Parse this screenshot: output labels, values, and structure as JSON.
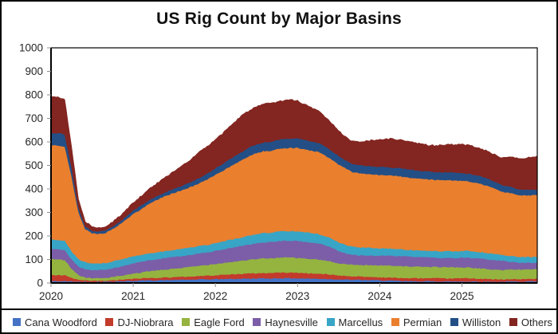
{
  "chart_data": {
    "type": "area",
    "stacked": true,
    "title": "US Rig Count by Major Basins",
    "xlabel": "",
    "ylabel": "",
    "x_start": "2020-01",
    "x_interval": "monthly",
    "x_tick_labels": [
      "2020",
      "2021",
      "2022",
      "2023",
      "2024",
      "2025"
    ],
    "y_ticks": [
      0,
      100,
      200,
      300,
      400,
      500,
      600,
      700,
      800,
      900,
      1000
    ],
    "ylim": [
      0,
      1000
    ],
    "grid": false,
    "legend_position": "bottom",
    "series": [
      {
        "name": "Cana Woodford",
        "color": "#4472C4",
        "values": [
          8,
          8,
          8,
          7,
          6,
          6,
          6,
          6,
          6,
          7,
          8,
          9,
          10,
          11,
          12,
          12,
          13,
          13,
          14,
          14,
          15,
          15,
          16,
          16,
          17,
          17,
          18,
          18,
          19,
          19,
          20,
          20,
          20,
          21,
          21,
          21,
          20,
          20,
          19,
          19,
          18,
          17,
          16,
          15,
          14,
          14,
          13,
          13,
          12,
          11,
          10,
          9,
          8,
          8,
          8,
          8,
          8,
          7,
          7,
          7,
          7,
          7,
          7,
          6,
          6,
          6,
          6,
          7,
          7,
          7,
          8,
          8
        ]
      },
      {
        "name": "DJ-Niobrara",
        "color": "#C23B2B",
        "values": [
          26,
          25,
          25,
          15,
          8,
          5,
          4,
          4,
          4,
          5,
          6,
          7,
          8,
          9,
          10,
          10,
          11,
          11,
          12,
          12,
          13,
          14,
          15,
          16,
          17,
          18,
          19,
          20,
          21,
          22,
          22,
          23,
          23,
          24,
          24,
          24,
          24,
          23,
          22,
          21,
          20,
          19,
          17,
          16,
          15,
          14,
          14,
          13,
          13,
          13,
          13,
          13,
          13,
          13,
          13,
          13,
          13,
          13,
          13,
          13,
          14,
          14,
          13,
          12,
          11,
          10,
          9,
          10,
          10,
          10,
          10,
          10
        ]
      },
      {
        "name": "Eagle Ford",
        "color": "#94B43F",
        "values": [
          68,
          67,
          66,
          40,
          20,
          13,
          11,
          11,
          12,
          14,
          16,
          18,
          22,
          24,
          28,
          30,
          32,
          34,
          36,
          38,
          40,
          42,
          44,
          46,
          48,
          50,
          52,
          54,
          56,
          58,
          60,
          62,
          62,
          63,
          64,
          64,
          63,
          62,
          61,
          60,
          58,
          55,
          52,
          50,
          49,
          49,
          50,
          50,
          50,
          51,
          51,
          51,
          50,
          49,
          48,
          48,
          48,
          48,
          48,
          47,
          46,
          45,
          44,
          43,
          42,
          41,
          40,
          41,
          41,
          41,
          41,
          42
        ]
      },
      {
        "name": "Haynesville",
        "color": "#7B5EA7",
        "values": [
          43,
          43,
          42,
          38,
          36,
          35,
          34,
          35,
          36,
          38,
          40,
          42,
          44,
          45,
          46,
          47,
          48,
          49,
          50,
          51,
          51,
          52,
          52,
          53,
          55,
          57,
          59,
          61,
          63,
          65,
          67,
          68,
          69,
          70,
          71,
          71,
          72,
          71,
          70,
          69,
          66,
          60,
          52,
          46,
          42,
          41,
          41,
          41,
          41,
          41,
          42,
          42,
          42,
          42,
          41,
          40,
          39,
          39,
          40,
          40,
          41,
          42,
          42,
          42,
          41,
          40,
          39,
          33,
          30,
          29,
          28,
          28
        ]
      },
      {
        "name": "Marcellus",
        "color": "#38A5C6",
        "values": [
          40,
          40,
          40,
          35,
          32,
          30,
          29,
          28,
          28,
          28,
          29,
          30,
          30,
          30,
          30,
          30,
          30,
          30,
          30,
          31,
          31,
          31,
          32,
          32,
          33,
          34,
          35,
          36,
          37,
          38,
          39,
          40,
          40,
          41,
          41,
          42,
          42,
          41,
          41,
          40,
          39,
          38,
          37,
          36,
          35,
          34,
          33,
          32,
          32,
          31,
          30,
          29,
          29,
          28,
          28,
          28,
          28,
          28,
          28,
          28,
          29,
          29,
          28,
          28,
          27,
          26,
          25,
          25,
          24,
          24,
          24,
          24
        ]
      },
      {
        "name": "Permian",
        "color": "#EA7F2E",
        "values": [
          400,
          402,
          400,
          320,
          200,
          140,
          128,
          125,
          128,
          138,
          150,
          165,
          180,
          192,
          205,
          218,
          228,
          236,
          242,
          248,
          254,
          262,
          270,
          280,
          290,
          300,
          310,
          320,
          330,
          340,
          345,
          348,
          348,
          350,
          352,
          353,
          354,
          352,
          350,
          348,
          343,
          336,
          330,
          325,
          318,
          315,
          314,
          314,
          312,
          312,
          311,
          310,
          308,
          306,
          305,
          304,
          303,
          303,
          302,
          301,
          298,
          295,
          292,
          289,
          283,
          276,
          268,
          268,
          264,
          261,
          262,
          263
        ]
      },
      {
        "name": "Williston",
        "color": "#234F86",
        "values": [
          53,
          53,
          52,
          35,
          18,
          12,
          10,
          10,
          10,
          11,
          12,
          13,
          14,
          15,
          15,
          16,
          16,
          17,
          18,
          19,
          20,
          22,
          24,
          26,
          28,
          30,
          32,
          33,
          34,
          35,
          36,
          37,
          38,
          39,
          40,
          40,
          41,
          41,
          40,
          39,
          38,
          37,
          36,
          35,
          34,
          34,
          33,
          33,
          34,
          34,
          34,
          35,
          35,
          35,
          34,
          34,
          33,
          33,
          33,
          33,
          33,
          33,
          33,
          32,
          31,
          30,
          28,
          26,
          25,
          24,
          23,
          22
        ]
      },
      {
        "name": "Others",
        "color": "#832520",
        "values": [
          155,
          152,
          150,
          90,
          40,
          22,
          18,
          17,
          18,
          20,
          24,
          28,
          35,
          40,
          46,
          52,
          58,
          65,
          76,
          85,
          93,
          102,
          113,
          117,
          122,
          129,
          138,
          148,
          155,
          158,
          161,
          164,
          164,
          162,
          164,
          165,
          159,
          150,
          145,
          136,
          126,
          118,
          109,
          100,
          96,
          100,
          106,
          112,
          118,
          120,
          122,
          120,
          118,
          117,
          114,
          112,
          113,
          115,
          118,
          120,
          122,
          121,
          120,
          118,
          116,
          115,
          117,
          128,
          132,
          134,
          140,
          142
        ]
      }
    ],
    "colors": {
      "axis_text": "#262626",
      "plot_border": "#000000",
      "tick_mark": "#8c8c8c"
    }
  }
}
